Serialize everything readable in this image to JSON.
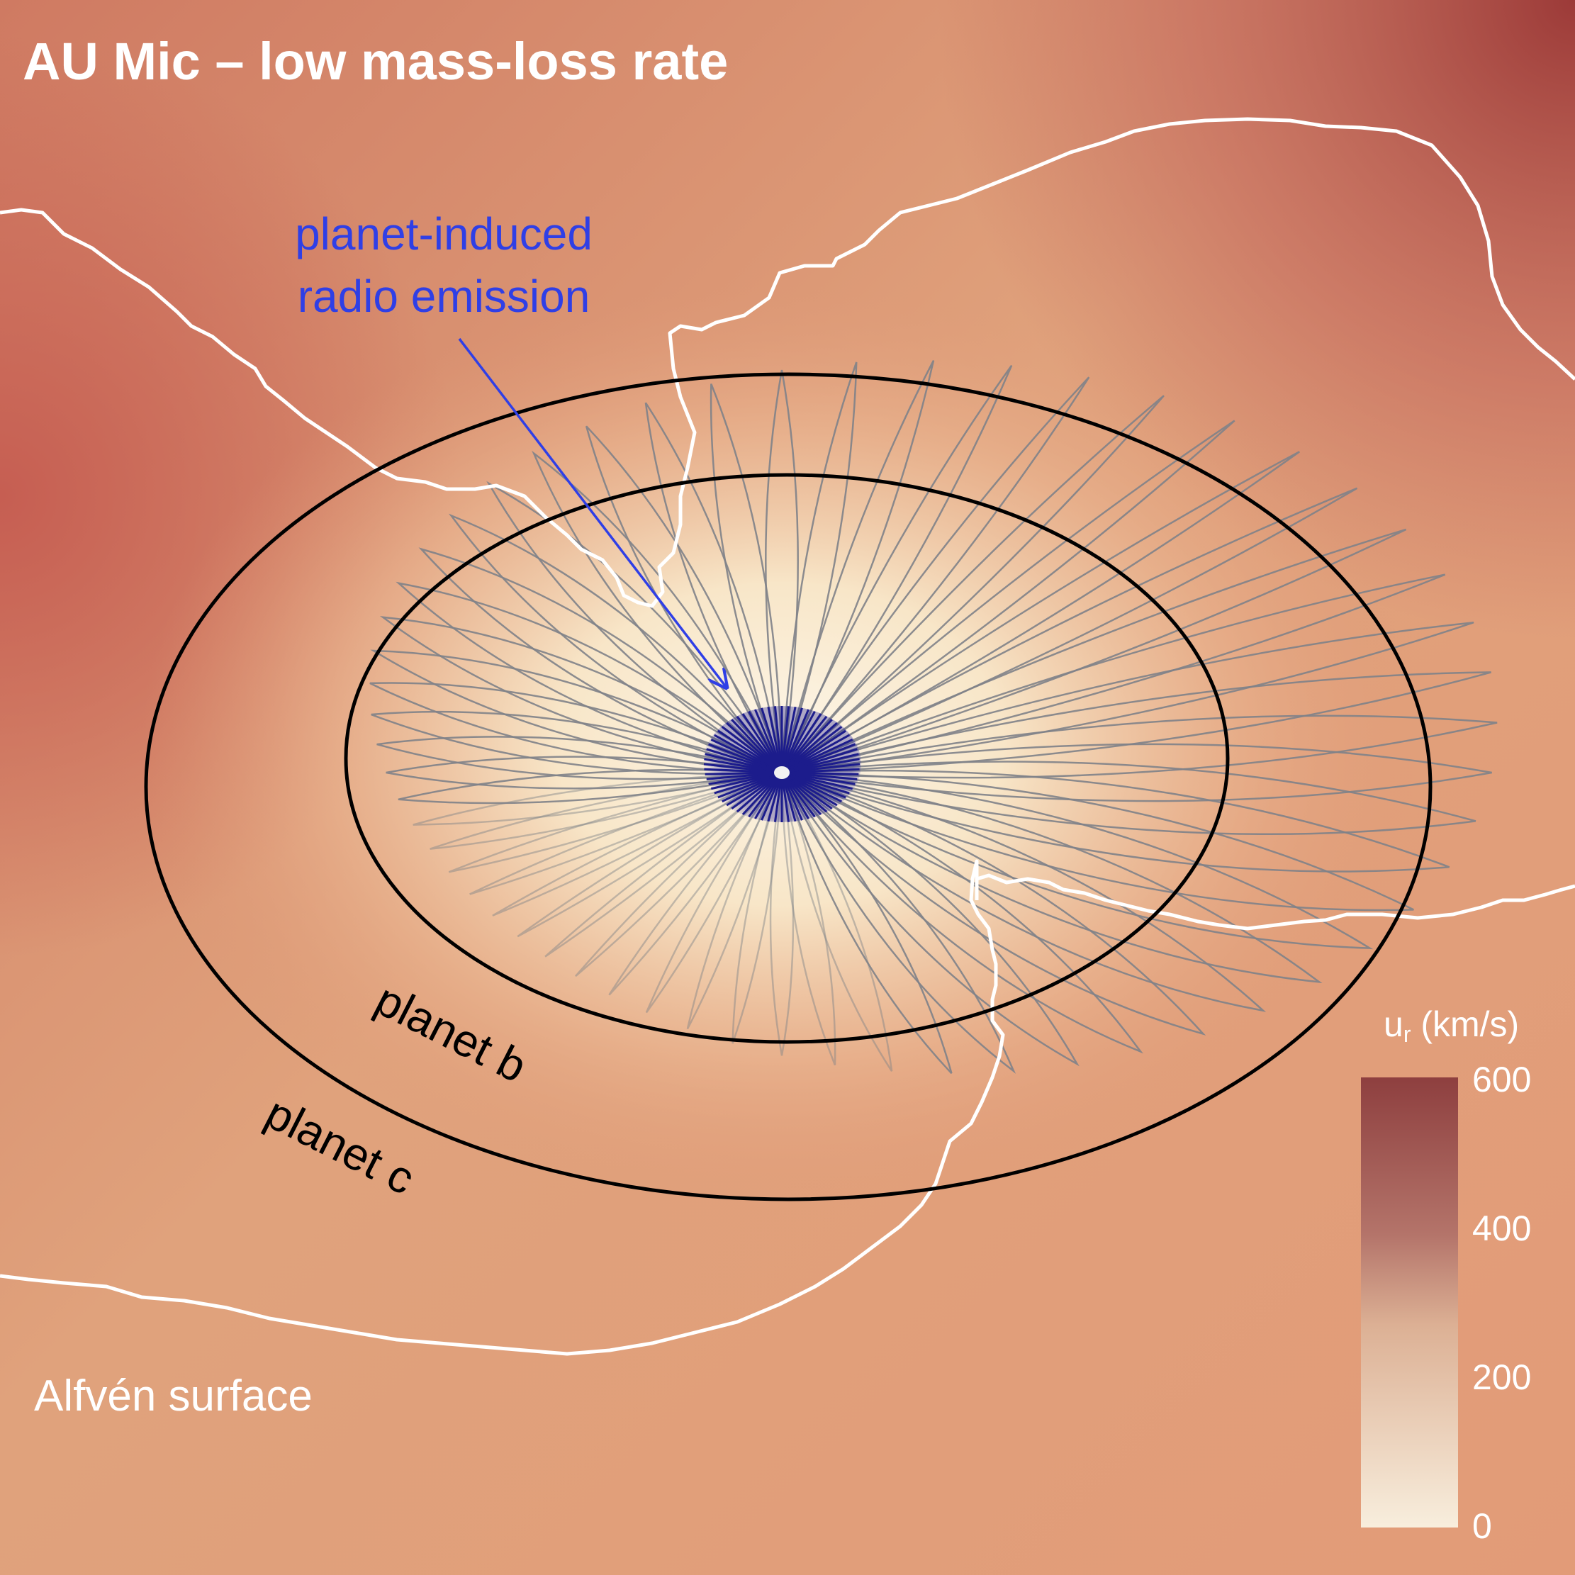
{
  "title": "AU Mic – low mass-loss rate",
  "annotation": {
    "line1": "planet-induced",
    "line2": "radio emission"
  },
  "orbits": {
    "inner_label": "planet b",
    "outer_label": "planet c"
  },
  "surface_label": "Alfvén surface",
  "colorbar": {
    "title_main": "u",
    "title_sub": "r",
    "title_unit": " (km/s)",
    "ticks": [
      "600",
      "400",
      "200",
      "0"
    ],
    "range": [
      0,
      600
    ]
  },
  "colors": {
    "annotation": "#2f3fe6",
    "surface_outline": "#ffffff",
    "orbit": "#000000",
    "field_lines": "#7f8288",
    "star_region": "#1c1c8c",
    "cb_top": "#8e3f3f",
    "cb_bottom": "#f8eedd"
  }
}
